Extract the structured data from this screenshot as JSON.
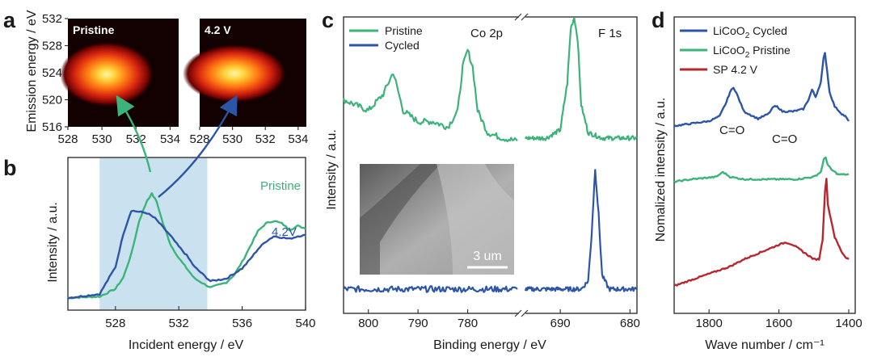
{
  "panels": {
    "a": {
      "letter": "a"
    },
    "b": {
      "letter": "b"
    },
    "c": {
      "letter": "c"
    },
    "d": {
      "letter": "d"
    }
  },
  "chart_data": [
    {
      "id": "a",
      "type": "heatmap",
      "ylabel": "Emission energy / eV",
      "xlim": [
        528,
        534.5
      ],
      "ylim": [
        516,
        532
      ],
      "xticks": [
        528,
        530,
        532,
        534
      ],
      "yticks": [
        516,
        520,
        524,
        528,
        532
      ],
      "maps": [
        {
          "name": "Pristine",
          "label": "Pristine",
          "xticks": [
            528,
            530,
            532,
            534
          ],
          "hotspot": {
            "x": 530.0,
            "y": 523.8
          }
        },
        {
          "name": "4.2 V",
          "label": "4.2 V",
          "xticks": [
            528,
            530,
            532,
            534
          ],
          "hotspot": {
            "x": 529.8,
            "y": 523.8
          }
        }
      ]
    },
    {
      "id": "b",
      "type": "line",
      "xlabel": "Incident energy / eV",
      "ylabel": "Intensity / a.u.",
      "xlim": [
        525,
        540
      ],
      "ylim": [
        0,
        1
      ],
      "xticks": [
        528,
        532,
        536,
        540
      ],
      "highlight_range": [
        527,
        533.8
      ],
      "series": [
        {
          "name": "Pristine",
          "label": "Pristine",
          "color": "#3cb37a",
          "x": [
            525,
            527,
            528,
            528.5,
            529,
            529.5,
            530,
            530.3,
            530.6,
            531,
            531.5,
            532,
            533,
            534,
            535,
            535.5,
            536,
            536.5,
            537,
            537.5,
            538,
            538.5,
            539,
            539.5,
            540
          ],
          "y": [
            0.02,
            0.03,
            0.09,
            0.18,
            0.36,
            0.62,
            0.78,
            0.83,
            0.77,
            0.6,
            0.43,
            0.33,
            0.17,
            0.1,
            0.14,
            0.2,
            0.3,
            0.42,
            0.54,
            0.6,
            0.62,
            0.6,
            0.55,
            0.58,
            0.56
          ]
        },
        {
          "name": "4.2V",
          "label": "4.2V",
          "color": "#2c55a8",
          "x": [
            525,
            527,
            528,
            528.5,
            529,
            529.5,
            530,
            530.5,
            531,
            531.5,
            532,
            532.5,
            533,
            534,
            535,
            536,
            536.5,
            537,
            537.5,
            538,
            538.5,
            539,
            539.5,
            540
          ],
          "y": [
            0.02,
            0.05,
            0.26,
            0.52,
            0.7,
            0.69,
            0.68,
            0.64,
            0.57,
            0.5,
            0.42,
            0.35,
            0.26,
            0.15,
            0.17,
            0.25,
            0.32,
            0.4,
            0.46,
            0.5,
            0.49,
            0.48,
            0.5,
            0.51
          ]
        }
      ]
    },
    {
      "id": "c",
      "type": "line",
      "xlabel": "Binding energy / eV",
      "ylabel": "Intensity / a.u.",
      "xlim": [
        805,
        679
      ],
      "xticks": [
        800,
        790,
        780,
        690,
        680
      ],
      "peak_labels": [
        {
          "text": "Co 2p",
          "x": 781
        },
        {
          "text": "F 1s",
          "x": 685
        }
      ],
      "inset_scale": "3 um",
      "series": [
        {
          "name": "Pristine",
          "label": "Pristine",
          "color": "#3cb37a",
          "co2p": {
            "x": [
              805,
              800,
              797,
              795,
              793,
              790,
              787,
              784,
              782,
              781,
              780,
              779,
              778,
              776,
              773,
              770
            ],
            "y": [
              0.74,
              0.7,
              0.76,
              0.84,
              0.7,
              0.66,
              0.66,
              0.64,
              0.7,
              0.86,
              0.92,
              0.86,
              0.7,
              0.62,
              0.6,
              0.59
            ]
          },
          "f1s": {
            "x": [
              695,
              692,
              690,
              689,
              688.5,
              688,
              687.5,
              687,
              686,
              684,
              680,
              679
            ],
            "y": [
              0.6,
              0.6,
              0.63,
              0.8,
              1.0,
              1.04,
              0.96,
              0.72,
              0.62,
              0.6,
              0.6,
              0.6
            ]
          }
        },
        {
          "name": "Cycled",
          "label": "Cycled",
          "color": "#2c55a8",
          "co2p": {
            "x": [
              805,
              795,
              785,
              775,
              770
            ],
            "y": [
              0.05,
              0.05,
              0.05,
              0.05,
              0.05
            ]
          },
          "f1s": {
            "x": [
              695,
              690,
              687,
              686,
              685.5,
              685,
              684.5,
              684,
              683,
              680,
              679
            ],
            "y": [
              0.05,
              0.05,
              0.05,
              0.08,
              0.25,
              0.49,
              0.32,
              0.1,
              0.05,
              0.05,
              0.05
            ]
          }
        }
      ]
    },
    {
      "id": "d",
      "type": "line",
      "xlabel": "Wave number / cm⁻¹",
      "ylabel": "Nomalized intensity / a.u.",
      "xlim": [
        1900,
        1400
      ],
      "xticks": [
        1800,
        1600,
        1400
      ],
      "annotations": [
        {
          "text": "C=O",
          "x": 1735
        },
        {
          "text": "C=O",
          "x": 1610
        }
      ],
      "series": [
        {
          "name": "LiCoO2 Cycled",
          "label_main": "LiCoO",
          "label_sub": "2",
          "label_tail": " Cycled",
          "color": "#2c55a8",
          "x": [
            1900,
            1850,
            1800,
            1770,
            1750,
            1740,
            1730,
            1720,
            1700,
            1660,
            1630,
            1615,
            1605,
            1590,
            1560,
            1530,
            1515,
            1505,
            1495,
            1480,
            1472,
            1468,
            1462,
            1455,
            1440,
            1420,
            1410,
            1400
          ],
          "y": [
            0.72,
            0.73,
            0.74,
            0.76,
            0.82,
            0.86,
            0.88,
            0.85,
            0.78,
            0.75,
            0.77,
            0.8,
            0.8,
            0.78,
            0.78,
            0.79,
            0.83,
            0.87,
            0.84,
            0.9,
            1.0,
            1.02,
            0.95,
            0.86,
            0.8,
            0.77,
            0.76,
            0.74
          ]
        },
        {
          "name": "LiCoO2 Pristine",
          "label_main": "LiCoO",
          "label_sub": "2",
          "label_tail": " Pristine",
          "color": "#3cb37a",
          "x": [
            1900,
            1850,
            1780,
            1760,
            1740,
            1700,
            1650,
            1600,
            1550,
            1500,
            1480,
            1472,
            1466,
            1460,
            1450,
            1430,
            1410,
            1400
          ],
          "y": [
            0.49,
            0.5,
            0.51,
            0.53,
            0.51,
            0.5,
            0.5,
            0.5,
            0.5,
            0.51,
            0.53,
            0.58,
            0.59,
            0.56,
            0.54,
            0.52,
            0.52,
            0.52
          ]
        },
        {
          "name": "SP 4.2 V",
          "label": "SP 4.2 V",
          "color": "#b5282e",
          "x": [
            1900,
            1860,
            1820,
            1780,
            1740,
            1700,
            1650,
            1600,
            1580,
            1560,
            1530,
            1500,
            1485,
            1475,
            1468,
            1464,
            1460,
            1455,
            1450,
            1440,
            1430,
            1420,
            1410,
            1400
          ],
          "y": [
            0.06,
            0.08,
            0.1,
            0.12,
            0.14,
            0.17,
            0.2,
            0.23,
            0.24,
            0.23,
            0.2,
            0.17,
            0.17,
            0.25,
            0.45,
            0.5,
            0.4,
            0.36,
            0.33,
            0.26,
            0.23,
            0.2,
            0.18,
            0.17
          ]
        }
      ]
    }
  ]
}
